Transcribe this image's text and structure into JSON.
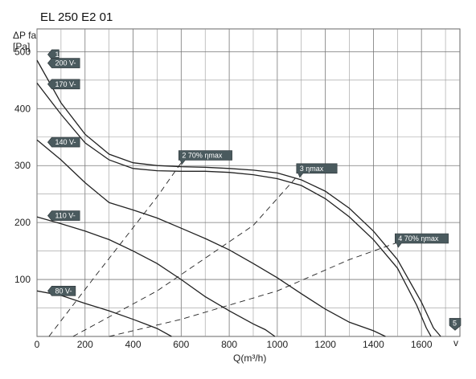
{
  "chart_data": {
    "type": "line",
    "title": "EL 250 E2 01",
    "ylabel_line1": "ΔP fa",
    "ylabel_line2": "[Pa]",
    "xlabel": "Q(m³/h)",
    "x_extra_label": "v",
    "xlim": [
      0,
      1760
    ],
    "ylim": [
      0,
      540
    ],
    "x_ticks": [
      0,
      200,
      400,
      600,
      800,
      1000,
      1200,
      1400,
      1600
    ],
    "y_ticks": [
      100,
      200,
      300,
      400,
      500
    ],
    "grid": true,
    "series": [
      {
        "name": "200 V-",
        "style": "solid",
        "points": [
          [
            0,
            485
          ],
          [
            100,
            410
          ],
          [
            200,
            355
          ],
          [
            300,
            320
          ],
          [
            400,
            305
          ],
          [
            500,
            300
          ],
          [
            600,
            298
          ],
          [
            700,
            297
          ],
          [
            800,
            295
          ],
          [
            900,
            292
          ],
          [
            1000,
            287
          ],
          [
            1100,
            275
          ],
          [
            1200,
            255
          ],
          [
            1300,
            225
          ],
          [
            1400,
            185
          ],
          [
            1500,
            135
          ],
          [
            1600,
            60
          ],
          [
            1650,
            15
          ],
          [
            1680,
            0
          ]
        ]
      },
      {
        "name": "170 V-",
        "style": "solid",
        "points": [
          [
            0,
            445
          ],
          [
            100,
            390
          ],
          [
            200,
            340
          ],
          [
            300,
            310
          ],
          [
            400,
            295
          ],
          [
            500,
            291
          ],
          [
            600,
            290
          ],
          [
            700,
            290
          ],
          [
            800,
            288
          ],
          [
            900,
            284
          ],
          [
            1000,
            277
          ],
          [
            1100,
            265
          ],
          [
            1200,
            242
          ],
          [
            1300,
            210
          ],
          [
            1400,
            170
          ],
          [
            1500,
            120
          ],
          [
            1580,
            55
          ],
          [
            1620,
            15
          ],
          [
            1640,
            0
          ]
        ]
      },
      {
        "name": "140 V-",
        "style": "solid",
        "points": [
          [
            0,
            345
          ],
          [
            100,
            310
          ],
          [
            200,
            270
          ],
          [
            300,
            235
          ],
          [
            400,
            222
          ],
          [
            500,
            208
          ],
          [
            600,
            190
          ],
          [
            700,
            172
          ],
          [
            800,
            152
          ],
          [
            900,
            128
          ],
          [
            1000,
            103
          ],
          [
            1100,
            75
          ],
          [
            1200,
            48
          ],
          [
            1300,
            25
          ],
          [
            1400,
            10
          ],
          [
            1450,
            0
          ]
        ]
      },
      {
        "name": "110 V-",
        "style": "solid",
        "points": [
          [
            0,
            210
          ],
          [
            100,
            198
          ],
          [
            200,
            185
          ],
          [
            300,
            170
          ],
          [
            400,
            150
          ],
          [
            500,
            128
          ],
          [
            600,
            100
          ],
          [
            700,
            70
          ],
          [
            800,
            45
          ],
          [
            900,
            22
          ],
          [
            950,
            12
          ],
          [
            990,
            0
          ]
        ]
      },
      {
        "name": "80 V-",
        "style": "solid",
        "points": [
          [
            0,
            80
          ],
          [
            100,
            72
          ],
          [
            200,
            58
          ],
          [
            300,
            45
          ],
          [
            400,
            30
          ],
          [
            450,
            22
          ],
          [
            500,
            14
          ],
          [
            560,
            0
          ]
        ]
      },
      {
        "name": "2 70% ηmax",
        "style": "dashed",
        "points": [
          [
            50,
            0
          ],
          [
            250,
            110
          ],
          [
            500,
            245
          ],
          [
            600,
            305
          ]
        ]
      },
      {
        "name": "3 ηmax",
        "style": "dashed",
        "points": [
          [
            150,
            0
          ],
          [
            500,
            80
          ],
          [
            900,
            195
          ],
          [
            1080,
            280
          ]
        ]
      },
      {
        "name": "4 70% ηmax",
        "style": "dashed",
        "points": [
          [
            300,
            0
          ],
          [
            600,
            30
          ],
          [
            1000,
            80
          ],
          [
            1300,
            135
          ],
          [
            1500,
            165
          ]
        ]
      }
    ],
    "labels": [
      {
        "text": "1",
        "x": 45,
        "y": 495,
        "kind": "start"
      },
      {
        "text": "200 V-",
        "x": 45,
        "y": 480,
        "kind": "start"
      },
      {
        "text": "170 V-",
        "x": 45,
        "y": 443,
        "kind": "start"
      },
      {
        "text": "140 V-",
        "x": 45,
        "y": 341,
        "kind": "start"
      },
      {
        "text": "110 V-",
        "x": 45,
        "y": 212,
        "kind": "start"
      },
      {
        "text": "80 V-",
        "x": 45,
        "y": 80,
        "kind": "start"
      },
      {
        "text": "2  70% ηmax",
        "x": 590,
        "y": 318,
        "kind": "callout"
      },
      {
        "text": "3   ηmax",
        "x": 1080,
        "y": 295,
        "kind": "callout"
      },
      {
        "text": "4  70% ηmax",
        "x": 1490,
        "y": 172,
        "kind": "callout"
      },
      {
        "text": "5",
        "x": 1740,
        "y": 15,
        "kind": "end"
      }
    ]
  }
}
